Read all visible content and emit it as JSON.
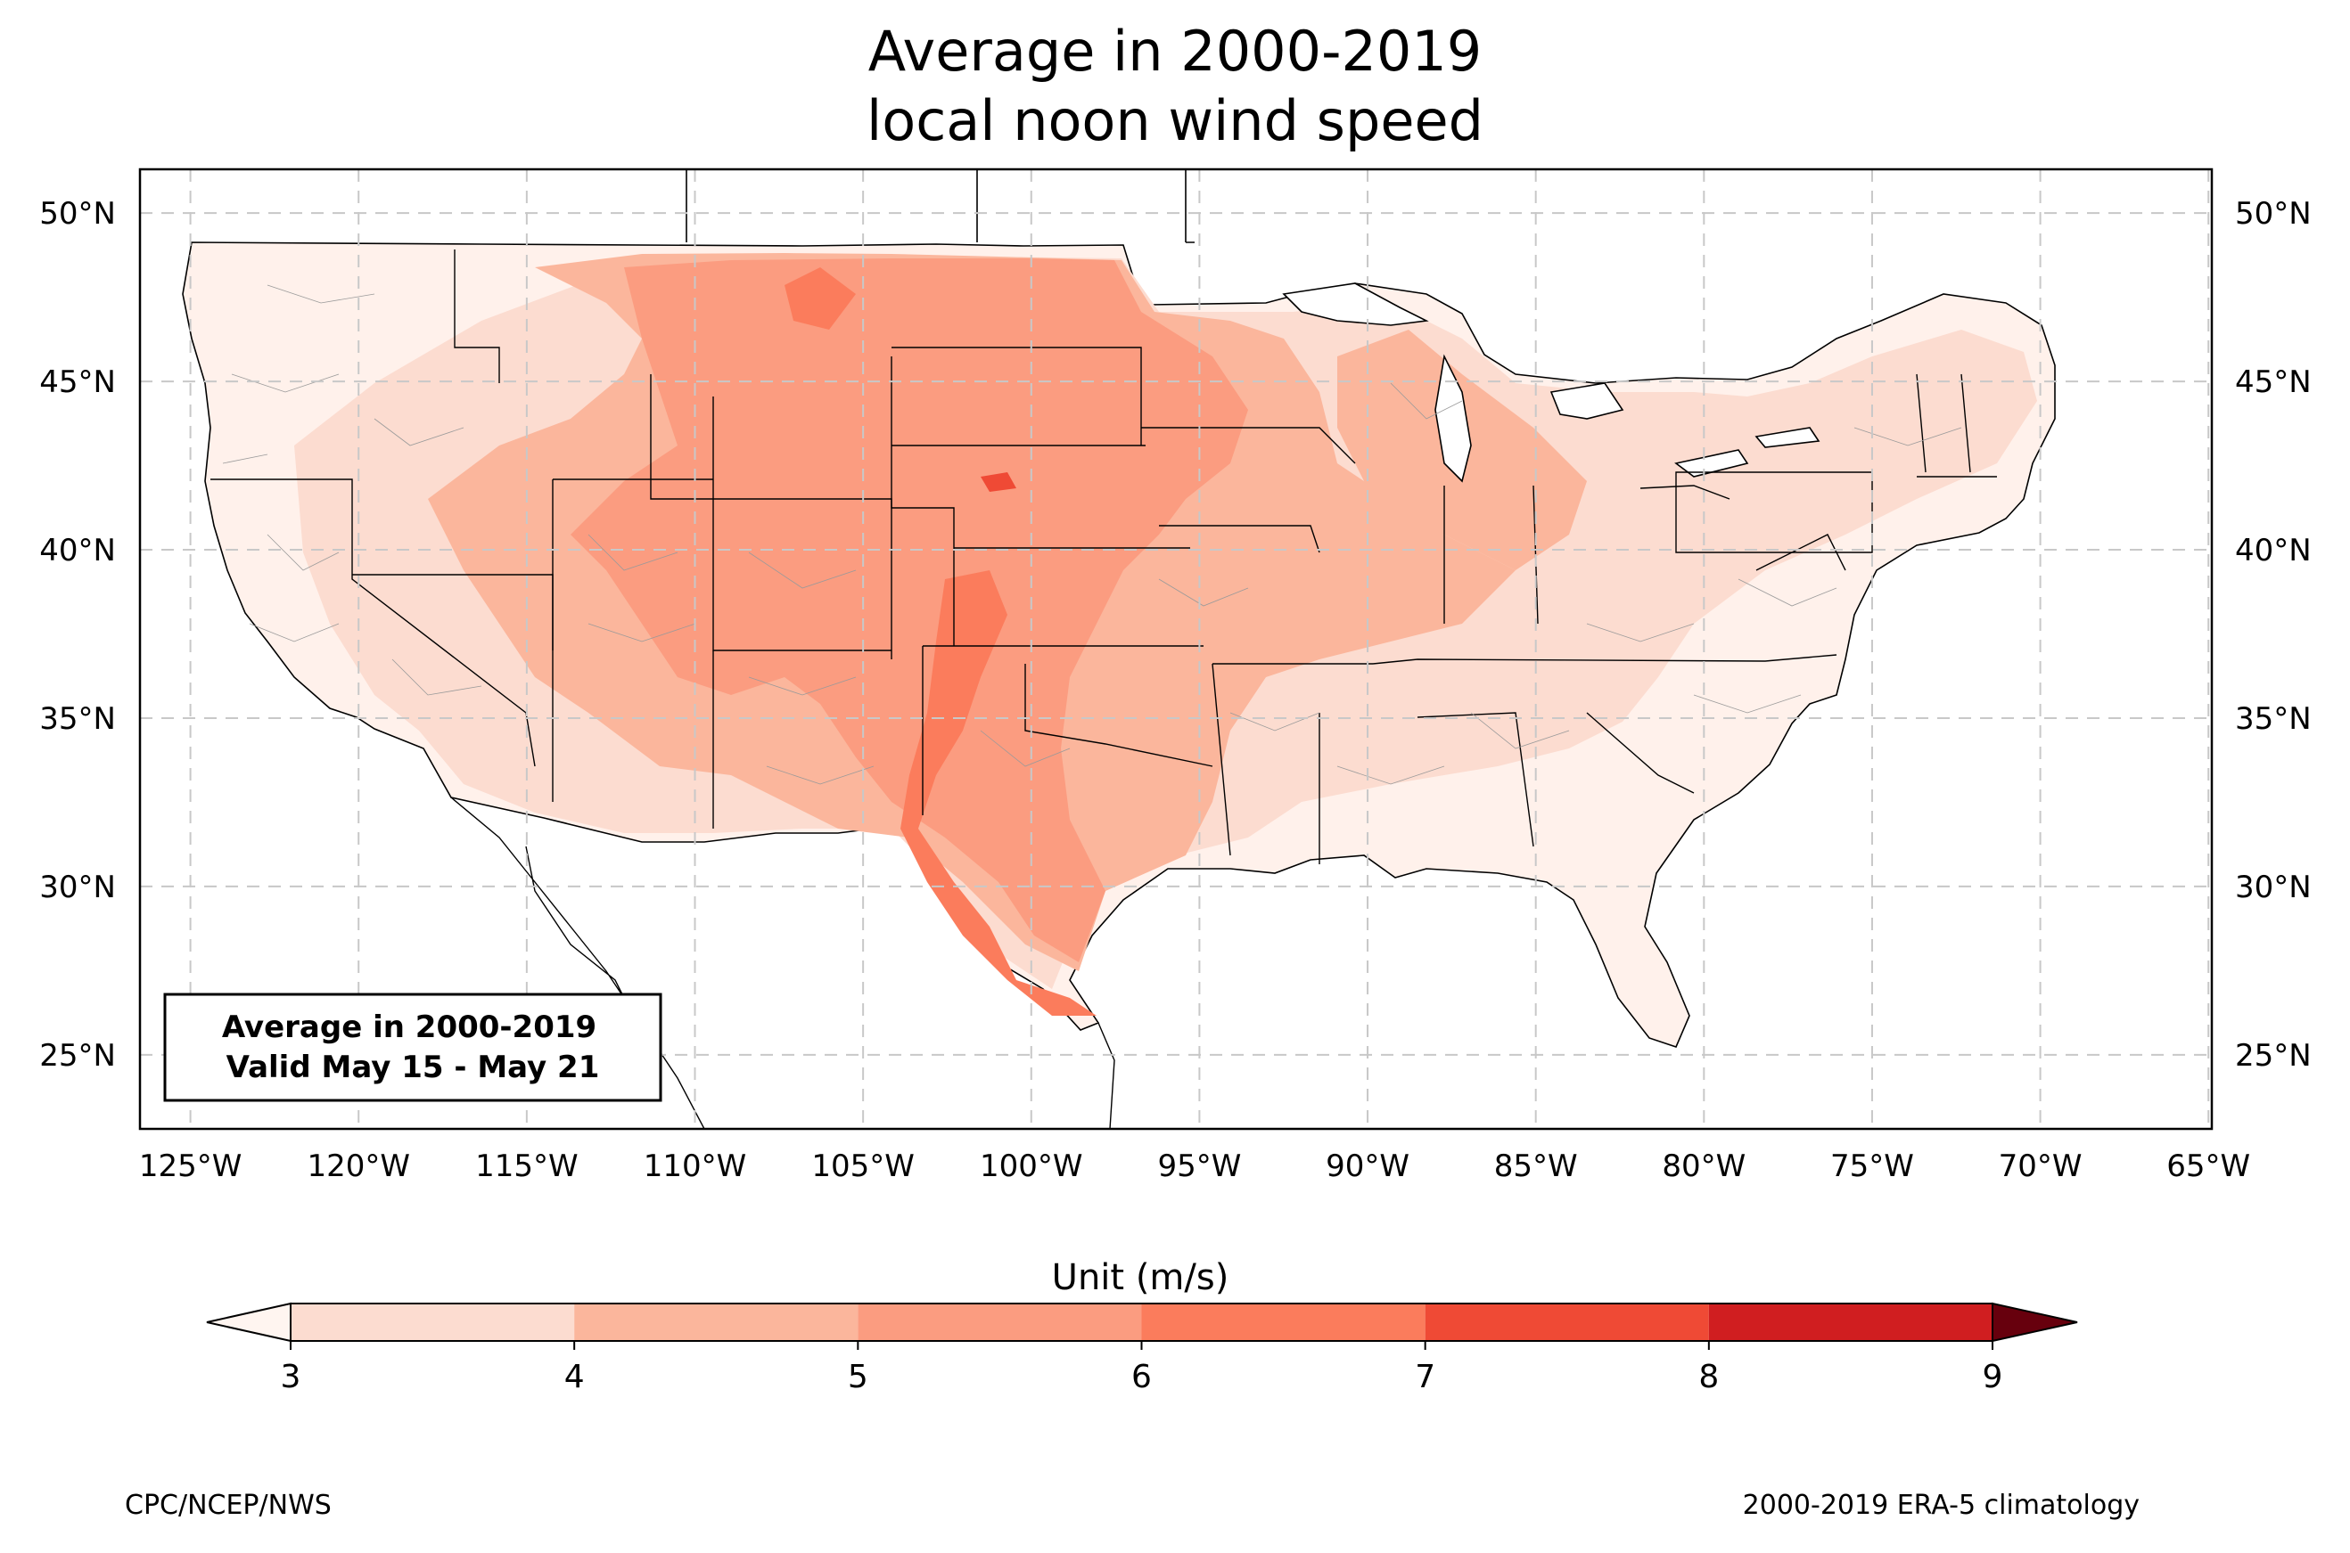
{
  "title": {
    "line1": "Average in 2000-2019",
    "line2": "local noon wind speed"
  },
  "map": {
    "projection": "PlateCarree",
    "lon_range": [
      -126.5,
      -64.9
    ],
    "lat_range": [
      22.8,
      51.3
    ],
    "lat_ticks": [
      50,
      45,
      40,
      35,
      30,
      25
    ],
    "lat_tick_labels": [
      "50°N",
      "45°N",
      "40°N",
      "35°N",
      "30°N",
      "25°N"
    ],
    "lon_ticks": [
      -125,
      -120,
      -115,
      -110,
      -105,
      -100,
      -95,
      -90,
      -85,
      -80,
      -75,
      -70,
      -65
    ],
    "lon_tick_labels": [
      "125°W",
      "120°W",
      "115°W",
      "110°W",
      "105°W",
      "100°W",
      "95°W",
      "90°W",
      "85°W",
      "80°W",
      "75°W",
      "70°W",
      "65°W"
    ],
    "gridlines": true,
    "annotation": {
      "line1": "Average in 2000-2019",
      "line2": "Valid May 15 - May 21"
    }
  },
  "colorbar": {
    "label": "Unit (m/s)",
    "levels": [
      3,
      4,
      5,
      6,
      7,
      8,
      9
    ],
    "tick_labels": [
      "3",
      "4",
      "5",
      "6",
      "7",
      "8",
      "9"
    ],
    "colors": [
      "#fcdcd0",
      "#fbb69c",
      "#fb9c80",
      "#fb7c5c",
      "#ef4a35",
      "#d01e20",
      "#a50f15"
    ],
    "under_color": "#fff5f0",
    "over_color": "#67000d",
    "extend": "both"
  },
  "footer": {
    "left": "CPC/NCEP/NWS",
    "right": "2000-2019 ERA-5 climatology"
  }
}
